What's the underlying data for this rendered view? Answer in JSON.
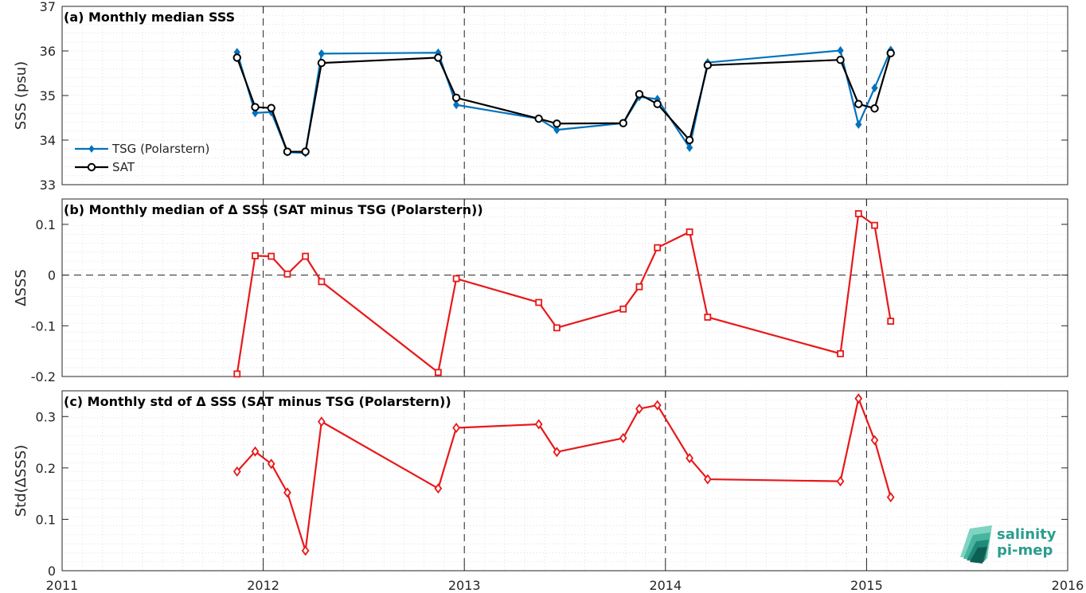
{
  "colors": {
    "tsg": "#0072BD",
    "sat": "#000000",
    "delta": "#E8181A",
    "logo": "#2a9d8f"
  },
  "logo": {
    "line1": "salinity",
    "line2": "pi-mep"
  },
  "chart_data": [
    {
      "type": "line",
      "title": "(a) Monthly median SSS",
      "ylabel": "SSS (psu)",
      "xlim": [
        2011,
        2016
      ],
      "ylim": [
        33,
        37
      ],
      "yticks": [
        "33",
        "34",
        "35",
        "36",
        "37"
      ],
      "grid": true,
      "legend_position": "bottom-left",
      "series": [
        {
          "name": "TSG (Polarstern)",
          "marker": "diamond",
          "color": "#0072BD",
          "x": [
            2011.87,
            2011.96,
            2012.04,
            2012.12,
            2012.21,
            2012.29,
            2012.87,
            2012.96,
            2013.37,
            2013.46,
            2013.79,
            2013.87,
            2013.96,
            2014.12,
            2014.21,
            2014.87,
            2014.96,
            2015.04,
            2015.12
          ],
          "y": [
            35.97,
            34.61,
            34.63,
            33.73,
            33.71,
            35.94,
            35.96,
            34.79,
            34.48,
            34.23,
            34.38,
            34.97,
            34.92,
            33.83,
            35.74,
            36.01,
            34.35,
            35.17,
            36.02
          ]
        },
        {
          "name": "SAT",
          "marker": "circle",
          "color": "#000000",
          "x": [
            2011.87,
            2011.96,
            2012.04,
            2012.12,
            2012.21,
            2012.29,
            2012.87,
            2012.96,
            2013.37,
            2013.46,
            2013.79,
            2013.87,
            2013.96,
            2014.12,
            2014.21,
            2014.87,
            2014.96,
            2015.04,
            2015.12
          ],
          "y": [
            35.85,
            34.74,
            34.72,
            33.74,
            33.74,
            35.73,
            35.85,
            34.95,
            34.48,
            34.37,
            34.38,
            35.03,
            34.81,
            34.0,
            35.68,
            35.8,
            34.81,
            34.71,
            35.95
          ]
        }
      ]
    },
    {
      "type": "line",
      "title": "(b) Monthly median of Δ SSS (SAT minus TSG (Polarstern))",
      "ylabel": "ΔSSS",
      "xlim": [
        2011,
        2016
      ],
      "ylim": [
        -0.2,
        0.15
      ],
      "yticks": [
        "-0.2",
        "-0.1",
        "0",
        "0.1"
      ],
      "grid": true,
      "series": [
        {
          "marker": "square",
          "color": "#E8181A",
          "x": [
            2011.87,
            2011.96,
            2012.04,
            2012.12,
            2012.21,
            2012.29,
            2012.87,
            2012.96,
            2013.37,
            2013.46,
            2013.79,
            2013.87,
            2013.96,
            2014.12,
            2014.21,
            2014.87,
            2014.96,
            2015.04,
            2015.12
          ],
          "y": [
            -0.195,
            0.038,
            0.037,
            0.002,
            0.037,
            -0.013,
            -0.192,
            -0.007,
            -0.054,
            -0.104,
            -0.067,
            -0.023,
            0.054,
            0.085,
            -0.083,
            -0.155,
            0.121,
            0.098,
            -0.091
          ]
        }
      ]
    },
    {
      "type": "line",
      "title": "(c) Monthly std of Δ SSS (SAT minus TSG (Polarstern))",
      "ylabel": "Std(ΔSSS)",
      "xlim": [
        2011,
        2016
      ],
      "ylim": [
        0,
        0.35
      ],
      "yticks": [
        "0",
        "0.1",
        "0.2",
        "0.3"
      ],
      "xticks": [
        "2011",
        "2012",
        "2013",
        "2014",
        "2015",
        "2016"
      ],
      "grid": true,
      "series": [
        {
          "marker": "diamond",
          "color": "#E8181A",
          "x": [
            2011.87,
            2011.96,
            2012.04,
            2012.12,
            2012.21,
            2012.29,
            2012.87,
            2012.96,
            2013.37,
            2013.46,
            2013.79,
            2013.87,
            2013.96,
            2014.12,
            2014.21,
            2014.87,
            2014.96,
            2015.04,
            2015.12
          ],
          "y": [
            0.193,
            0.232,
            0.208,
            0.152,
            0.039,
            0.29,
            0.16,
            0.278,
            0.285,
            0.231,
            0.258,
            0.315,
            0.322,
            0.219,
            0.178,
            0.174,
            0.335,
            0.254,
            0.143
          ]
        }
      ]
    }
  ]
}
